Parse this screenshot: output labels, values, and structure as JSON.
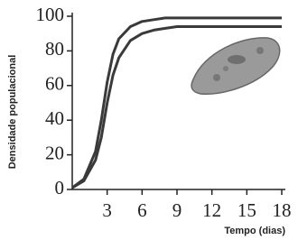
{
  "chart_data": {
    "type": "line",
    "x_label": "Tempo (dias)",
    "y_label": "Densidade populacional",
    "x": [
      0,
      1,
      2,
      2.5,
      3,
      3.5,
      4,
      5,
      6,
      7,
      8,
      9,
      10,
      12,
      14,
      16,
      18
    ],
    "series": [
      {
        "color": "#3a3a3a",
        "values": [
          1,
          5,
          17,
          30,
          50,
          66,
          76,
          86,
          90,
          92,
          93,
          94,
          94,
          94,
          94,
          94,
          94
        ]
      },
      {
        "color": "#3a3a3a",
        "values": [
          1,
          6,
          22,
          40,
          62,
          78,
          87,
          94,
          97,
          98,
          99,
          99,
          99,
          99,
          99,
          99,
          99
        ]
      }
    ],
    "xlim": [
      0,
      18
    ],
    "xticks": [
      3,
      6,
      9,
      12,
      15,
      18
    ],
    "ylim": [
      0,
      100
    ],
    "yticks": [
      0,
      20,
      40,
      60,
      80,
      100
    ],
    "grid": false
  }
}
